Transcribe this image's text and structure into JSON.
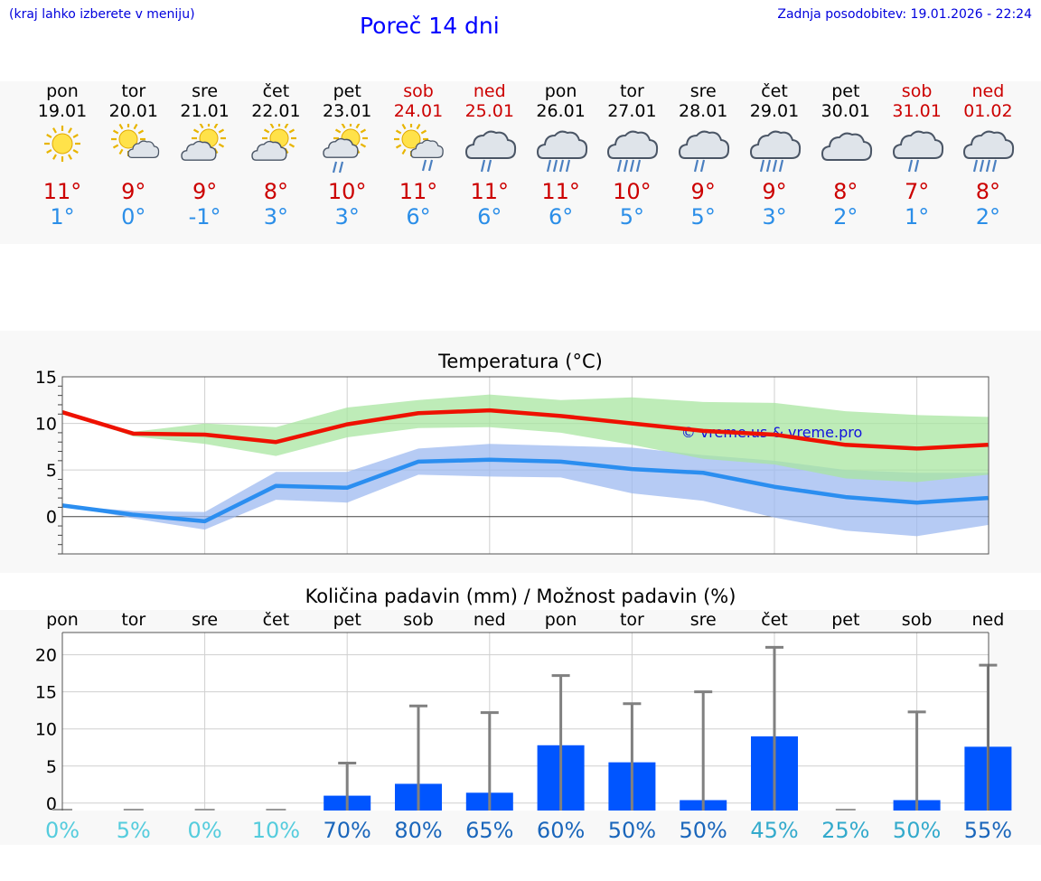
{
  "header": {
    "hint": "(kraj lahko izberete v meniju)",
    "title": "Poreč 14 dni",
    "updated": "Zadnja posodobitev: 19.01.2026 - 22:24"
  },
  "days": [
    {
      "name": "pon",
      "date": "19.01",
      "weekend": false,
      "icon": "sun-icon",
      "tmax": "11°",
      "tmin": "1°"
    },
    {
      "name": "tor",
      "date": "20.01",
      "weekend": false,
      "icon": "sun-cloud-icon",
      "tmax": "9°",
      "tmin": "0°"
    },
    {
      "name": "sre",
      "date": "21.01",
      "weekend": false,
      "icon": "partly-cloudy-icon",
      "tmax": "9°",
      "tmin": "-1°"
    },
    {
      "name": "čet",
      "date": "22.01",
      "weekend": false,
      "icon": "partly-cloudy-icon",
      "tmax": "8°",
      "tmin": "3°"
    },
    {
      "name": "pet",
      "date": "23.01",
      "weekend": false,
      "icon": "partly-cloudy-rain-icon",
      "tmax": "10°",
      "tmin": "3°"
    },
    {
      "name": "sob",
      "date": "24.01",
      "weekend": true,
      "icon": "sun-cloud-rain-icon",
      "tmax": "11°",
      "tmin": "6°"
    },
    {
      "name": "ned",
      "date": "25.01",
      "weekend": true,
      "icon": "cloud-light-rain-icon",
      "tmax": "11°",
      "tmin": "6°"
    },
    {
      "name": "pon",
      "date": "26.01",
      "weekend": false,
      "icon": "cloud-heavy-rain-icon",
      "tmax": "11°",
      "tmin": "6°"
    },
    {
      "name": "tor",
      "date": "27.01",
      "weekend": false,
      "icon": "cloud-heavy-rain-icon",
      "tmax": "10°",
      "tmin": "5°"
    },
    {
      "name": "sre",
      "date": "28.01",
      "weekend": false,
      "icon": "cloud-light-rain-icon",
      "tmax": "9°",
      "tmin": "5°"
    },
    {
      "name": "čet",
      "date": "29.01",
      "weekend": false,
      "icon": "cloud-heavy-rain-icon",
      "tmax": "9°",
      "tmin": "3°"
    },
    {
      "name": "pet",
      "date": "30.01",
      "weekend": false,
      "icon": "cloud-icon",
      "tmax": "8°",
      "tmin": "2°"
    },
    {
      "name": "sob",
      "date": "31.01",
      "weekend": true,
      "icon": "cloud-light-rain-icon",
      "tmax": "7°",
      "tmin": "1°"
    },
    {
      "name": "ned",
      "date": "01.02",
      "weekend": true,
      "icon": "cloud-heavy-rain-icon",
      "tmax": "8°",
      "tmin": "2°"
    }
  ],
  "colors": {
    "max_line": "#ee1100",
    "min_line": "#2b8ef0",
    "max_band": "#a8e6a0",
    "min_band": "#9db9f0",
    "bar": "#0055ff",
    "error_bar": "#808080",
    "weekend_text": "#cc0000",
    "prob_levels": [
      "#55ccdd",
      "#33aacc",
      "#1a66bb"
    ]
  },
  "chart_data": [
    {
      "type": "line",
      "title": "Temperatura (°C)",
      "ylim": [
        -4,
        15
      ],
      "yticks": [
        0,
        5,
        10,
        15
      ],
      "watermark": "© vreme.us & vreme.pro",
      "x": [
        0,
        1,
        2,
        3,
        4,
        5,
        6,
        7,
        8,
        9,
        10,
        11,
        12,
        13
      ],
      "series": [
        {
          "name": "max",
          "values": [
            11.2,
            8.9,
            8.8,
            8.0,
            9.9,
            11.1,
            11.4,
            10.8,
            10.0,
            9.2,
            8.8,
            7.7,
            7.3,
            7.7
          ]
        },
        {
          "name": "max_high",
          "values": [
            11.2,
            9.1,
            10.0,
            9.6,
            11.7,
            12.5,
            13.1,
            12.5,
            12.8,
            12.3,
            12.2,
            11.3,
            10.9,
            10.7
          ]
        },
        {
          "name": "max_low",
          "values": [
            11.2,
            8.6,
            7.8,
            6.5,
            8.5,
            9.5,
            9.6,
            9.0,
            7.7,
            6.2,
            5.6,
            4.1,
            3.7,
            4.5
          ]
        },
        {
          "name": "min",
          "values": [
            1.2,
            0.2,
            -0.5,
            3.3,
            3.1,
            5.9,
            6.1,
            5.9,
            5.1,
            4.7,
            3.2,
            2.1,
            1.5,
            2.0
          ]
        },
        {
          "name": "min_high",
          "values": [
            1.2,
            0.6,
            0.5,
            4.8,
            4.8,
            7.3,
            7.8,
            7.6,
            7.4,
            6.6,
            6.0,
            5.0,
            4.7,
            4.7
          ]
        },
        {
          "name": "min_low",
          "values": [
            1.2,
            -0.2,
            -1.4,
            1.8,
            1.5,
            4.5,
            4.3,
            4.2,
            2.5,
            1.7,
            -0.1,
            -1.5,
            -2.1,
            -0.9
          ]
        }
      ]
    },
    {
      "type": "bar",
      "title": "Količina padavin (mm) / Možnost padavin (%)",
      "ylim": [
        -1,
        23
      ],
      "yticks": [
        0,
        5,
        10,
        15,
        20
      ],
      "categories": [
        "pon",
        "tor",
        "sre",
        "čet",
        "pet",
        "sob",
        "ned",
        "pon",
        "tor",
        "sre",
        "čet",
        "pet",
        "sob",
        "ned"
      ],
      "values": [
        0,
        0,
        0,
        0,
        1.0,
        2.6,
        1.4,
        7.8,
        5.5,
        0.4,
        9.0,
        0,
        0.4,
        7.6
      ],
      "error_max": [
        0,
        0,
        0,
        0,
        5.4,
        13.1,
        12.2,
        17.2,
        13.4,
        15.0,
        21.0,
        0,
        12.3,
        18.6
      ],
      "probability": [
        "0%",
        "5%",
        "0%",
        "10%",
        "70%",
        "80%",
        "65%",
        "60%",
        "50%",
        "50%",
        "45%",
        "25%",
        "50%",
        "55%"
      ],
      "probability_level": [
        0,
        0,
        0,
        0,
        2,
        2,
        2,
        2,
        2,
        2,
        1,
        1,
        1,
        2
      ]
    }
  ]
}
